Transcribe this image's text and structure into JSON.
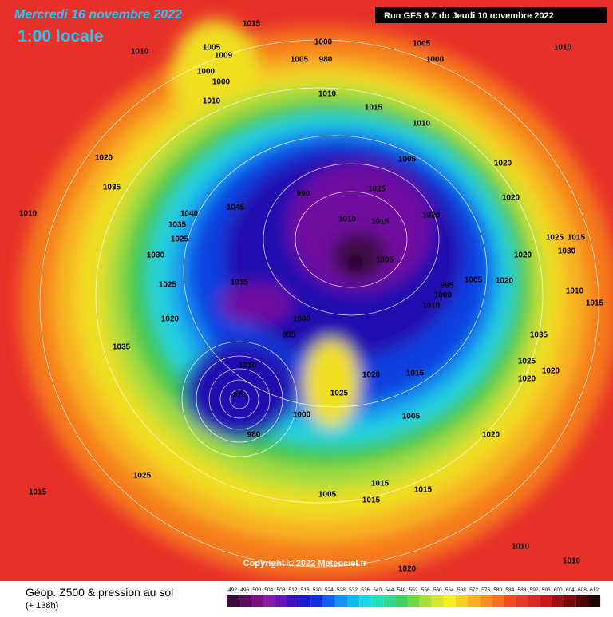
{
  "header": {
    "title": "Mercredi 16 novembre 2022",
    "time": "1:00 locale",
    "run": "Run GFS 6 Z du Jeudi 10 novembre 2022"
  },
  "map": {
    "copyright": "Copyright © 2022 Meteociel.fr",
    "isobar_labels": [
      1015,
      1010,
      1005,
      1009,
      1000,
      1000,
      1010,
      1000,
      1005,
      980,
      1010,
      1005,
      1000,
      1010,
      1015,
      1010,
      1005,
      1020,
      1020,
      1035,
      1010,
      1040,
      1045,
      1035,
      1025,
      1030,
      990,
      1025,
      1010,
      1015,
      1020,
      1005,
      995,
      1000,
      1005,
      1010,
      1015,
      1025,
      1020,
      1000,
      995,
      1035,
      1010,
      970,
      980,
      1000,
      1020,
      1015,
      1005,
      1025,
      1025,
      1015,
      1015,
      1015,
      1005,
      1015,
      1020,
      1010,
      1010,
      1020,
      1025,
      1015,
      1030,
      1010,
      1015,
      1020,
      1020,
      1020,
      1035,
      1020,
      1020,
      1025
    ]
  },
  "footer": {
    "field": "Géop. Z500 & pression au sol",
    "lead": "(+ 138h)",
    "colorbar": {
      "ticks": [
        492,
        496,
        500,
        504,
        508,
        512,
        516,
        520,
        524,
        528,
        532,
        536,
        540,
        544,
        548,
        552,
        556,
        560,
        564,
        568,
        572,
        576,
        580,
        584,
        588,
        592,
        596,
        600,
        604,
        608,
        612
      ],
      "colors": [
        "#3a0a3a",
        "#5a0a5e",
        "#7a1085",
        "#8c1ca8",
        "#6a14b8",
        "#3a10c0",
        "#1a1ad0",
        "#1030e0",
        "#1060f0",
        "#1890f0",
        "#10b8f0",
        "#18d8e8",
        "#20e0c0",
        "#30d890",
        "#40d060",
        "#70d840",
        "#a8e038",
        "#d8e830",
        "#f8f020",
        "#f8d020",
        "#f8b020",
        "#f89020",
        "#f87020",
        "#f05020",
        "#e83828",
        "#e02828",
        "#c81818",
        "#a01010",
        "#780808",
        "#500404",
        "#200000"
      ]
    }
  }
}
